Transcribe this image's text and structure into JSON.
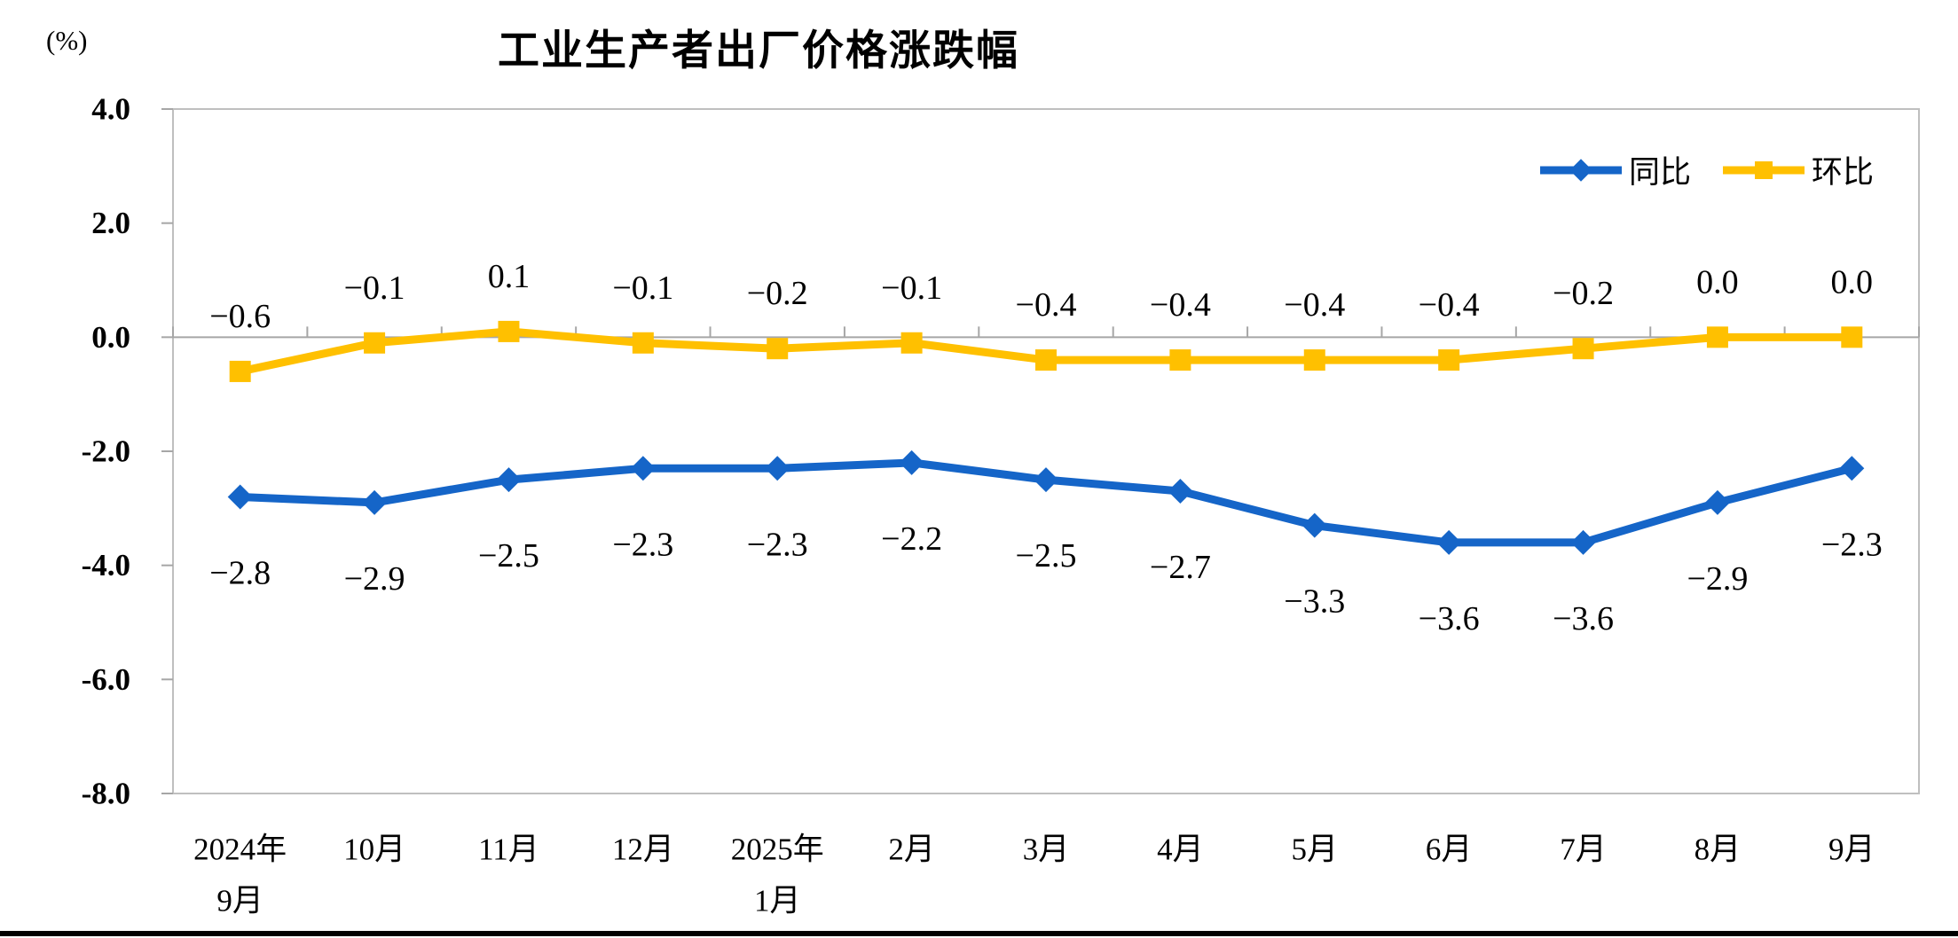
{
  "chart_data": {
    "type": "line",
    "title": "工业生产者出厂价格涨跌幅",
    "unit": "(%)",
    "categories": [
      "2024年9月",
      "10月",
      "11月",
      "12月",
      "2025年1月",
      "2月",
      "3月",
      "4月",
      "5月",
      "6月",
      "7月",
      "8月",
      "9月"
    ],
    "category_display": [
      [
        "2024年",
        "9月"
      ],
      [
        "10月"
      ],
      [
        "11月"
      ],
      [
        "12月"
      ],
      [
        "2025年",
        "1月"
      ],
      [
        "2月"
      ],
      [
        "3月"
      ],
      [
        "4月"
      ],
      [
        "5月"
      ],
      [
        "6月"
      ],
      [
        "7月"
      ],
      [
        "8月"
      ],
      [
        "9月"
      ]
    ],
    "series": [
      {
        "name": "同比",
        "color": "#1565C8",
        "marker": "diamond",
        "values": [
          -2.8,
          -2.9,
          -2.5,
          -2.3,
          -2.3,
          -2.2,
          -2.5,
          -2.7,
          -3.3,
          -3.6,
          -3.6,
          -2.9,
          -2.3
        ]
      },
      {
        "name": "环比",
        "color": "#FFC000",
        "marker": "square",
        "values": [
          -0.6,
          -0.1,
          0.1,
          -0.1,
          -0.2,
          -0.1,
          -0.4,
          -0.4,
          -0.4,
          -0.4,
          -0.2,
          0.0,
          0.0
        ]
      }
    ],
    "ylim": [
      -8.0,
      4.0
    ],
    "yticks": [
      4.0,
      2.0,
      0.0,
      -2.0,
      -4.0,
      -6.0,
      -8.0
    ],
    "grid": false,
    "legend_position": "top-right-inside",
    "axis_color": "#BFBFBF",
    "zero_line_color": "#A6A6A6",
    "text_color": "#000000"
  }
}
